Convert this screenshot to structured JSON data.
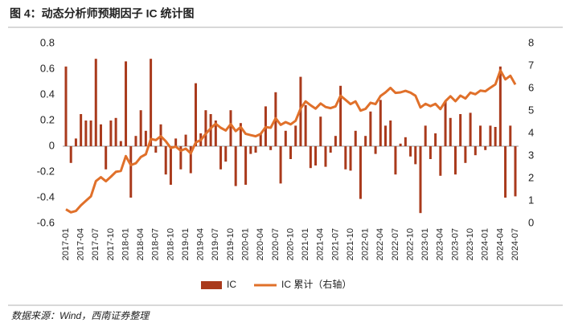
{
  "title": "图 4：动态分析师预期因子 IC 统计图",
  "source": "数据来源：Wind，西南证券整理",
  "chart_data": {
    "type": "bar_line",
    "categories": [
      "2017-01",
      null,
      null,
      "2017-04",
      null,
      null,
      "2017-07",
      null,
      null,
      "2017-10",
      null,
      null,
      "2018-01",
      null,
      null,
      "2018-04",
      null,
      null,
      "2018-07",
      null,
      null,
      "2018-10",
      null,
      null,
      "2019-01",
      null,
      null,
      "2019-04",
      null,
      null,
      "2019-07",
      null,
      null,
      "2019-10",
      null,
      null,
      "2020-01",
      null,
      null,
      "2020-04",
      null,
      null,
      "2020-07",
      null,
      null,
      "2020-10",
      null,
      null,
      "2021-01",
      null,
      null,
      "2021-04",
      null,
      null,
      "2021-07",
      null,
      null,
      "2021-10",
      null,
      null,
      "2022-01",
      null,
      null,
      "2022-04",
      null,
      null,
      "2022-07",
      null,
      null,
      "2022-10",
      null,
      null,
      "2023-01",
      null,
      null,
      "2023-04",
      null,
      null,
      "2023-07",
      null,
      null,
      "2023-10",
      null,
      null,
      "2024-01",
      null,
      null,
      "2024-04",
      null,
      null,
      "2024-07"
    ],
    "series": [
      {
        "name": "IC",
        "color": "#a93a1c",
        "values": [
          0.62,
          -0.13,
          0.06,
          0.25,
          0.2,
          0.2,
          0.68,
          0.17,
          -0.18,
          0.2,
          0.22,
          0.04,
          0.66,
          -0.4,
          0.08,
          0.28,
          0.12,
          0.68,
          -0.05,
          0.17,
          -0.22,
          -0.3,
          0.06,
          -0.18,
          0.09,
          -0.21,
          0.49,
          0.1,
          0.28,
          0.25,
          0.2,
          -0.18,
          -0.12,
          0.28,
          -0.31,
          0.18,
          -0.3,
          -0.06,
          -0.05,
          0.1,
          0.31,
          -0.03,
          0.42,
          -0.29,
          0.12,
          -0.1,
          0.16,
          0.54,
          0.32,
          -0.17,
          -0.15,
          0.23,
          -0.16,
          -0.05,
          0.08,
          0.47,
          -0.18,
          -0.19,
          0.12,
          -0.41,
          0.08,
          0.27,
          -0.06,
          0.36,
          0.16,
          0.2,
          -0.22,
          0.02,
          0.07,
          -0.08,
          -0.14,
          -0.52,
          0.16,
          -0.1,
          0.1,
          -0.23,
          0.35,
          0.22,
          -0.22,
          0.25,
          -0.13,
          0.26,
          -0.07,
          0.16,
          -0.03,
          0.16,
          0.15,
          0.62,
          -0.4,
          0.16,
          -0.39
        ]
      },
      {
        "name": "IC 累计（右轴）",
        "color": "#e0702a",
        "axis": "y2",
        "values": [
          0.62,
          0.49,
          0.55,
          0.8,
          1.0,
          1.2,
          1.88,
          2.05,
          1.87,
          2.07,
          2.29,
          2.33,
          2.99,
          2.59,
          2.67,
          2.95,
          3.07,
          3.75,
          3.7,
          3.87,
          3.65,
          3.35,
          3.41,
          3.23,
          3.32,
          3.11,
          3.6,
          3.7,
          3.98,
          4.23,
          4.43,
          4.25,
          4.13,
          4.41,
          4.1,
          4.28,
          3.98,
          3.92,
          3.87,
          3.97,
          4.28,
          4.25,
          4.67,
          4.38,
          4.5,
          4.4,
          4.56,
          5.1,
          5.42,
          5.25,
          5.1,
          5.33,
          5.17,
          5.12,
          5.2,
          5.67,
          5.49,
          5.3,
          5.42,
          5.01,
          5.09,
          5.36,
          5.3,
          5.66,
          5.82,
          6.02,
          5.8,
          5.82,
          5.89,
          5.81,
          5.67,
          5.15,
          5.31,
          5.21,
          5.31,
          5.08,
          5.43,
          5.65,
          5.43,
          5.68,
          5.55,
          5.81,
          5.74,
          5.9,
          5.87,
          6.03,
          6.18,
          6.8,
          6.4,
          6.56,
          6.17
        ]
      }
    ],
    "ylim": [
      -0.6,
      0.8
    ],
    "yticks": [
      -0.6,
      -0.4,
      -0.2,
      0,
      0.2,
      0.4,
      0.6,
      0.8
    ],
    "y2lim": [
      0,
      8
    ],
    "y2ticks": [
      0,
      1,
      2,
      3,
      4,
      5,
      6,
      7,
      8
    ],
    "legend": "bottom"
  }
}
